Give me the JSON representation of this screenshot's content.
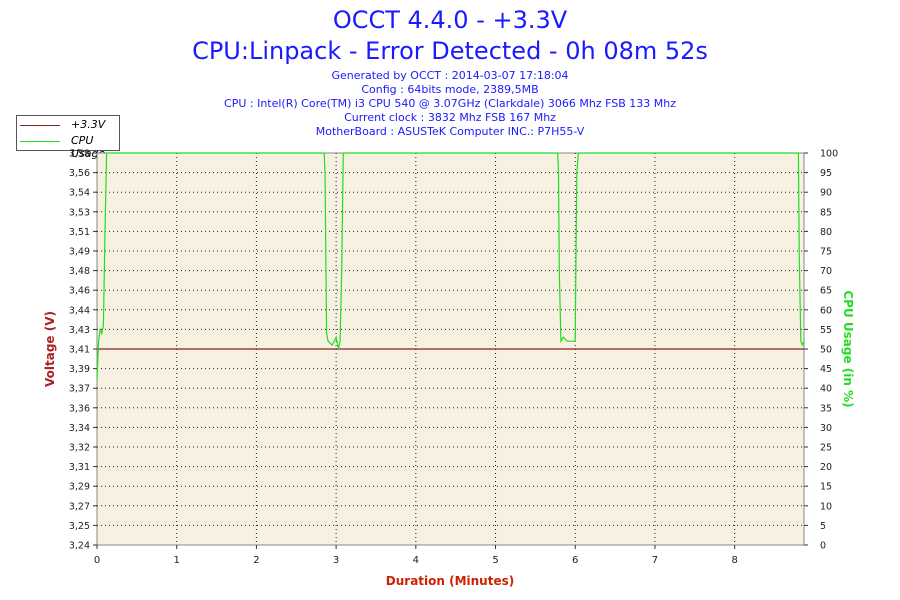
{
  "header": {
    "title_line1": "OCCT 4.4.0 - +3.3V",
    "title_line2": "CPU:Linpack - Error Detected - 0h 08m 52s",
    "info": [
      "Generated by OCCT : 2014-03-07 17:18:04",
      "Config : 64bits mode, 2389,5MB",
      "CPU : Intel(R) Core(TM) i3 CPU 540 @ 3.07GHz (Clarkdale) 3066 Mhz FSB 133 Mhz",
      "Current clock : 3832 Mhz FSB 167 Mhz",
      "MotherBoard : ASUSTeK Computer INC.: P7H55-V"
    ]
  },
  "legend": {
    "items": [
      {
        "label": "+3.3V",
        "color": "#8b2020"
      },
      {
        "label": "CPU Usage",
        "color": "#22dd22"
      }
    ]
  },
  "colors": {
    "plot_bg": "#f7f1e1",
    "voltage": "#8b2020",
    "cpu": "#22dd22",
    "title": "#1a1aff",
    "xlabel": "#cc2200",
    "ylabel_left": "#aa2222",
    "ylabel_right": "#22dd22"
  },
  "chart_data": {
    "type": "line",
    "title": "OCCT 4.4.0 - +3.3V",
    "subtitle": "CPU:Linpack - Error Detected - 0h 08m 52s",
    "xlabel": "Duration (Minutes)",
    "ylabel": "Voltage (V)",
    "y2label": "CPU Usage (in %)",
    "xlim": [
      0,
      8.87
    ],
    "ylim": [
      3.24,
      3.58
    ],
    "y2lim": [
      0,
      100
    ],
    "x_ticks": [
      "0",
      "1",
      "2",
      "3",
      "4",
      "5",
      "6",
      "7",
      "8"
    ],
    "x_tick_values": [
      0,
      1,
      2,
      3,
      4,
      5,
      6,
      7,
      8
    ],
    "y_ticks": [
      "3,24",
      "3,25",
      "3,27",
      "3,29",
      "3,31",
      "3,32",
      "3,34",
      "3,36",
      "3,37",
      "3,39",
      "3,41",
      "3,43",
      "3,44",
      "3,46",
      "3,48",
      "3,49",
      "3,51",
      "3,53",
      "3,54",
      "3,56",
      "3,58"
    ],
    "y2_ticks": [
      "0",
      "5",
      "10",
      "15",
      "20",
      "25",
      "30",
      "35",
      "40",
      "45",
      "50",
      "55",
      "60",
      "65",
      "70",
      "75",
      "80",
      "85",
      "90",
      "95",
      "100"
    ],
    "grid": true,
    "legend_position": "top-left",
    "series": [
      {
        "name": "+3.3V",
        "axis": "left",
        "x": [
          0,
          8.87
        ],
        "y": [
          3.41,
          3.41
        ]
      },
      {
        "name": "CPU Usage",
        "axis": "right",
        "x": [
          0.0,
          0.02,
          0.04,
          0.06,
          0.08,
          0.1,
          0.12,
          0.15,
          0.18,
          2.85,
          2.86,
          2.88,
          2.9,
          2.95,
          3.0,
          3.03,
          3.05,
          3.07,
          3.09,
          3.1,
          3.12,
          5.78,
          5.79,
          5.8,
          5.82,
          5.85,
          5.9,
          5.95,
          6.0,
          6.02,
          6.04,
          8.8,
          8.81,
          8.83,
          8.85,
          8.87
        ],
        "y": [
          42,
          52,
          55,
          54,
          56,
          80,
          100,
          100,
          100,
          100,
          95,
          54,
          52,
          51,
          53,
          50,
          52,
          70,
          100,
          100,
          100,
          100,
          95,
          70,
          52,
          53,
          52,
          52,
          52,
          95,
          100,
          100,
          75,
          52,
          51,
          52
        ]
      }
    ]
  }
}
